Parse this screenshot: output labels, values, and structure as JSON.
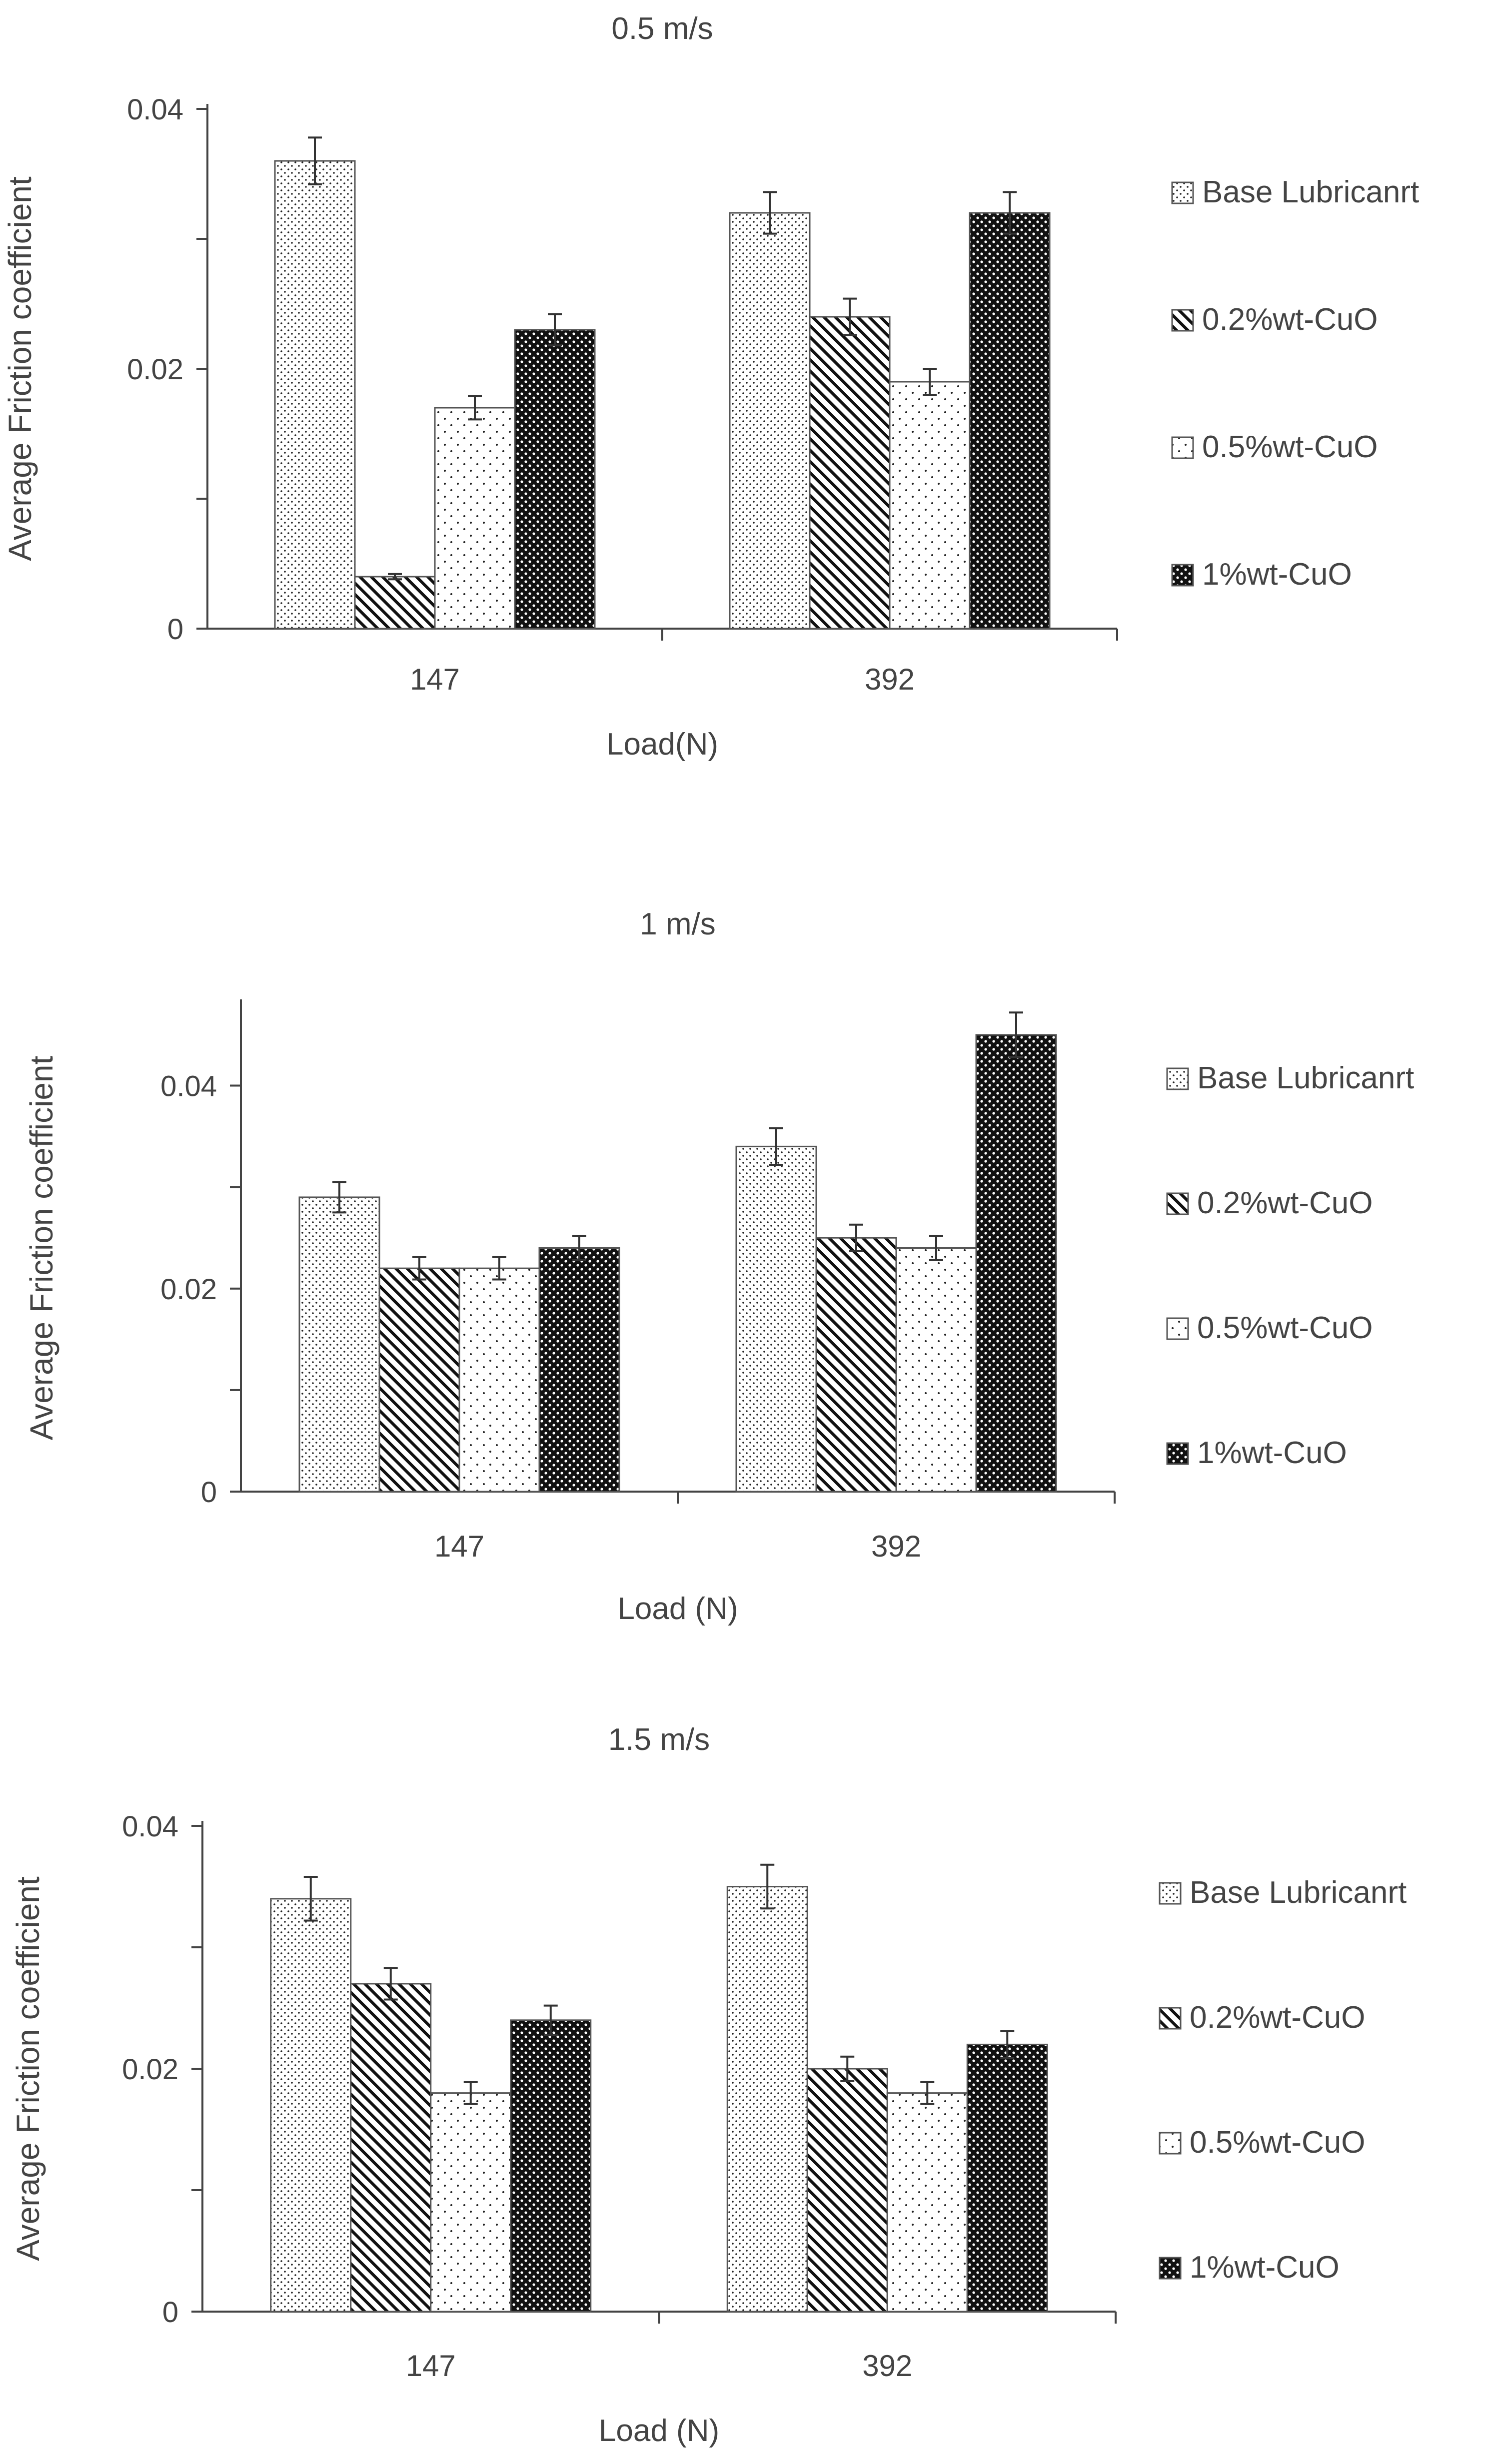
{
  "chart_data": [
    {
      "type": "bar",
      "title": "0.5 m/s",
      "xlabel": "Load(N)",
      "ylabel": "Average Friction coefficient",
      "categories": [
        "147",
        "392"
      ],
      "ylim": [
        0,
        0.04
      ],
      "yticks": [
        0,
        0.02,
        0.04
      ],
      "ytick_labels": [
        "0",
        "0.02",
        "0.04"
      ],
      "series": [
        {
          "name": "Base Lubricanrt",
          "values": [
            0.036,
            0.032
          ],
          "errors": [
            0.0018,
            0.0016
          ]
        },
        {
          "name": "0.2%wt-CuO",
          "values": [
            0.004,
            0.024
          ],
          "errors": [
            0.0002,
            0.0014
          ]
        },
        {
          "name": "0.5%wt-CuO",
          "values": [
            0.017,
            0.019
          ],
          "errors": [
            0.0009,
            0.001
          ]
        },
        {
          "name": "1%wt-CuO",
          "values": [
            0.023,
            0.032
          ],
          "errors": [
            0.0012,
            0.0016
          ]
        }
      ]
    },
    {
      "type": "bar",
      "title": "1 m/s",
      "xlabel": "Load (N)",
      "ylabel": "Average Friction coefficient",
      "categories": [
        "147",
        "392"
      ],
      "ylim": [
        0,
        0.048
      ],
      "yticks": [
        0,
        0.02,
        0.04
      ],
      "ytick_labels": [
        "0",
        "0.02",
        "0.04"
      ],
      "series": [
        {
          "name": "Base Lubricanrt",
          "values": [
            0.029,
            0.034
          ],
          "errors": [
            0.0015,
            0.0018
          ]
        },
        {
          "name": "0.2%wt-CuO",
          "values": [
            0.022,
            0.025
          ],
          "errors": [
            0.0011,
            0.0013
          ]
        },
        {
          "name": "0.5%wt-CuO",
          "values": [
            0.022,
            0.024
          ],
          "errors": [
            0.0011,
            0.0012
          ]
        },
        {
          "name": "1%wt-CuO",
          "values": [
            0.024,
            0.045
          ],
          "errors": [
            0.0012,
            0.0022
          ]
        }
      ]
    },
    {
      "type": "bar",
      "title": "1.5 m/s",
      "xlabel": "Load (N)",
      "ylabel": "Average Friction coefficient",
      "categories": [
        "147",
        "392"
      ],
      "ylim": [
        0,
        0.04
      ],
      "yticks": [
        0,
        0.02,
        0.04
      ],
      "ytick_labels": [
        "0",
        "0.02",
        "0.04"
      ],
      "series": [
        {
          "name": "Base Lubricanrt",
          "values": [
            0.034,
            0.035
          ],
          "errors": [
            0.0018,
            0.0018
          ]
        },
        {
          "name": "0.2%wt-CuO",
          "values": [
            0.027,
            0.02
          ],
          "errors": [
            0.0013,
            0.001
          ]
        },
        {
          "name": "0.5%wt-CuO",
          "values": [
            0.018,
            0.018
          ],
          "errors": [
            0.0009,
            0.0009
          ]
        },
        {
          "name": "1%wt-CuO",
          "values": [
            0.024,
            0.022
          ],
          "errors": [
            0.0012,
            0.0011
          ]
        }
      ]
    }
  ],
  "legend_position": "right",
  "colors": {
    "bar_stroke": "#555555",
    "axis": "#444444",
    "text": "#444444",
    "pattern_ink": "#111111",
    "background": "#ffffff"
  }
}
